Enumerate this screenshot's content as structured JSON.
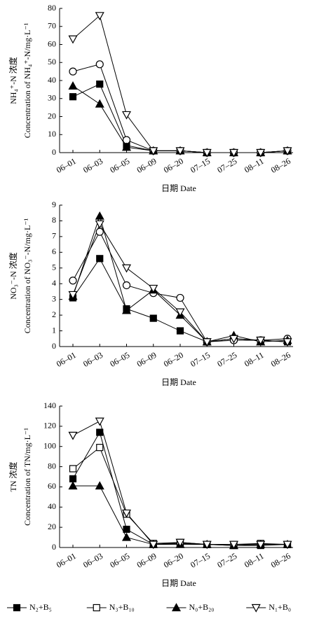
{
  "chart_data": [
    {
      "type": "line",
      "ylabel": [
        "NH₄⁺-N 浓度",
        "Concentration of NH₄⁺-N/mg·L⁻¹"
      ],
      "xlabel": "日期 Date",
      "categories": [
        "06–01",
        "06–03",
        "06–05",
        "06–09",
        "06–20",
        "07–15",
        "07–25",
        "08–11",
        "08–26"
      ],
      "ylim": [
        0,
        80
      ],
      "yticks": [
        0,
        10,
        20,
        30,
        40,
        50,
        60,
        70,
        80
      ],
      "series": [
        {
          "name": "N₂+B₅",
          "color": "#000000",
          "marker": "square-filled",
          "values": [
            31,
            38,
            4,
            1,
            1,
            0,
            0,
            0,
            1
          ]
        },
        {
          "name": "N₃+B₁₀",
          "color": "#000000",
          "marker": "circle-open",
          "values": [
            45,
            49,
            7,
            1,
            1,
            0,
            0,
            0,
            1
          ]
        },
        {
          "name": "N₀+B₂₀",
          "color": "#000000",
          "marker": "triangle-filled",
          "values": [
            37,
            27,
            3,
            1,
            1,
            0,
            0,
            0,
            1
          ]
        },
        {
          "name": "N₁+B₀",
          "color": "#000000",
          "marker": "triangle-down-open",
          "values": [
            63,
            76,
            21,
            1,
            1,
            0,
            0,
            0,
            1
          ]
        }
      ]
    },
    {
      "type": "line",
      "ylabel": [
        "NO₃⁻-N 浓度",
        "Concentration of NO₃⁻-N/mg·L⁻¹"
      ],
      "xlabel": "日期 Date",
      "categories": [
        "06–01",
        "06–03",
        "06–05",
        "06–09",
        "06–20",
        "07–15",
        "07–25",
        "08–11",
        "08–26"
      ],
      "ylim": [
        0,
        9
      ],
      "yticks": [
        0,
        1,
        2,
        3,
        4,
        5,
        6,
        7,
        8,
        9
      ],
      "series": [
        {
          "name": "N₂+B₅",
          "color": "#000000",
          "marker": "square-filled",
          "values": [
            3.1,
            5.6,
            2.4,
            1.8,
            1.0,
            0.3,
            0.5,
            0.4,
            0.3
          ]
        },
        {
          "name": "N₃+B₁₀",
          "color": "#000000",
          "marker": "circle-open",
          "values": [
            4.2,
            7.3,
            3.9,
            3.4,
            3.1,
            0.3,
            0.4,
            0.4,
            0.5
          ]
        },
        {
          "name": "N₀+B₂₀",
          "color": "#000000",
          "marker": "triangle-filled",
          "values": [
            3.2,
            8.3,
            2.3,
            3.6,
            2.0,
            0.3,
            0.7,
            0.3,
            0.4
          ]
        },
        {
          "name": "N₁+B₀",
          "color": "#000000",
          "marker": "triangle-down-open",
          "values": [
            3.3,
            7.8,
            5.0,
            3.7,
            2.2,
            0.3,
            0.5,
            0.4,
            0.3
          ]
        }
      ]
    },
    {
      "type": "line",
      "ylabel": [
        "TN 浓度",
        "Concentration of TN/mg·L⁻¹"
      ],
      "xlabel": "日期 Date",
      "categories": [
        "06–01",
        "06–03",
        "06–05",
        "06–09",
        "06–20",
        "07–15",
        "07–25",
        "08–11",
        "08–26"
      ],
      "ylim": [
        0,
        140
      ],
      "yticks": [
        0,
        20,
        40,
        60,
        80,
        100,
        120,
        140
      ],
      "series": [
        {
          "name": "N₂+B₅",
          "color": "#000000",
          "marker": "square-filled",
          "values": [
            68,
            114,
            18,
            3,
            4,
            3,
            2,
            2,
            3
          ]
        },
        {
          "name": "N₃+B₁₀",
          "color": "#000000",
          "marker": "square-open",
          "values": [
            78,
            99,
            33,
            4,
            5,
            3,
            3,
            4,
            3
          ]
        },
        {
          "name": "N₀+B₂₀",
          "color": "#000000",
          "marker": "triangle-filled",
          "values": [
            61,
            61,
            10,
            3,
            3,
            3,
            2,
            3,
            3
          ]
        },
        {
          "name": "N₁+B₀",
          "color": "#000000",
          "marker": "triangle-down-open",
          "values": [
            111,
            125,
            34,
            3,
            5,
            3,
            3,
            3,
            3
          ]
        }
      ]
    }
  ]
}
